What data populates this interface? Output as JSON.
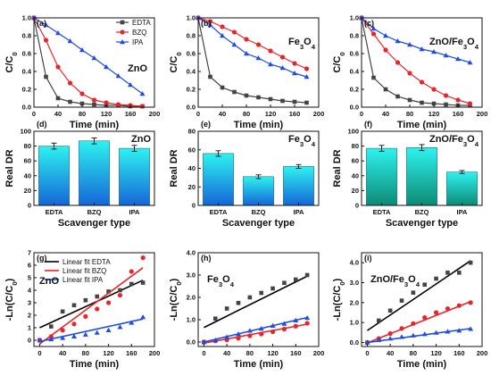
{
  "colors": {
    "edta": "#444444",
    "bzq": "#e8262a",
    "ipa": "#1f4de0",
    "bar_top": "#2ef2ef",
    "bar_blue": "#1466d8",
    "bar_green": "#0c8a74",
    "axis": "#111111"
  },
  "chart_data": [
    {
      "panel": "(a)",
      "type": "line",
      "title": "ZnO",
      "xlabel": "Time (min)",
      "ylabel": "C/C0",
      "xlim": [
        0,
        200
      ],
      "ylim": [
        0,
        1.0
      ],
      "xticks": [
        "0",
        "40",
        "80",
        "120",
        "160",
        "200"
      ],
      "yticks": [
        "0.0",
        "0.2",
        "0.4",
        "0.6",
        "0.8",
        "1.0"
      ],
      "x": [
        0,
        20,
        40,
        60,
        80,
        100,
        120,
        140,
        160,
        180
      ],
      "series": [
        {
          "name": "EDTA",
          "key": "edta",
          "marker": "square",
          "values": [
            1.0,
            0.34,
            0.1,
            0.06,
            0.04,
            0.03,
            0.02,
            0.02,
            0.01,
            0.01
          ]
        },
        {
          "name": "BZQ",
          "key": "bzq",
          "marker": "circle",
          "values": [
            1.0,
            0.75,
            0.45,
            0.27,
            0.15,
            0.08,
            0.05,
            0.03,
            0.02,
            0.01
          ]
        },
        {
          "name": "IPA",
          "key": "ipa",
          "marker": "triangle",
          "values": [
            1.0,
            0.92,
            0.83,
            0.74,
            0.64,
            0.55,
            0.45,
            0.35,
            0.25,
            0.15
          ]
        }
      ]
    },
    {
      "panel": "(b)",
      "type": "line",
      "title": "Fe3O4",
      "xlabel": "Time (min)",
      "ylabel": "C/C0",
      "xlim": [
        0,
        200
      ],
      "ylim": [
        0,
        1.0
      ],
      "xticks": [
        "0",
        "40",
        "80",
        "120",
        "160",
        "200"
      ],
      "yticks": [
        "0.0",
        "0.2",
        "0.4",
        "0.6",
        "0.8",
        "1.0"
      ],
      "x": [
        0,
        20,
        40,
        60,
        80,
        100,
        120,
        140,
        160,
        180
      ],
      "series": [
        {
          "name": "EDTA",
          "key": "edta",
          "marker": "square",
          "values": [
            1.0,
            0.34,
            0.22,
            0.17,
            0.13,
            0.11,
            0.09,
            0.07,
            0.06,
            0.05
          ]
        },
        {
          "name": "BZQ",
          "key": "bzq",
          "marker": "circle",
          "values": [
            1.0,
            0.96,
            0.9,
            0.84,
            0.76,
            0.7,
            0.63,
            0.56,
            0.49,
            0.43
          ]
        },
        {
          "name": "IPA",
          "key": "ipa",
          "marker": "triangle",
          "values": [
            1.0,
            0.92,
            0.8,
            0.7,
            0.6,
            0.55,
            0.48,
            0.44,
            0.38,
            0.34
          ]
        }
      ]
    },
    {
      "panel": "(c)",
      "type": "line",
      "title": "ZnO/Fe3O4",
      "xlabel": "Time (min)",
      "ylabel": "C/C0",
      "xlim": [
        0,
        200
      ],
      "ylim": [
        0,
        1.0
      ],
      "xticks": [
        "0",
        "40",
        "80",
        "120",
        "160",
        "200"
      ],
      "yticks": [
        "0.0",
        "0.2",
        "0.4",
        "0.6",
        "0.8",
        "1.0"
      ],
      "x": [
        0,
        20,
        40,
        60,
        80,
        100,
        120,
        140,
        160,
        180
      ],
      "series": [
        {
          "name": "EDTA",
          "key": "edta",
          "marker": "square",
          "values": [
            1.0,
            0.33,
            0.2,
            0.12,
            0.08,
            0.05,
            0.04,
            0.03,
            0.02,
            0.02
          ]
        },
        {
          "name": "BZQ",
          "key": "bzq",
          "marker": "circle",
          "values": [
            1.0,
            0.82,
            0.64,
            0.5,
            0.38,
            0.28,
            0.2,
            0.13,
            0.08,
            0.04
          ]
        },
        {
          "name": "IPA",
          "key": "ipa",
          "marker": "triangle",
          "values": [
            1.0,
            0.88,
            0.8,
            0.74,
            0.7,
            0.65,
            0.62,
            0.58,
            0.54,
            0.5
          ]
        }
      ]
    },
    {
      "panel": "(d)",
      "type": "bar",
      "title": "ZnO",
      "xlabel": "Scavenger type",
      "ylabel": "Real DR",
      "ylim": [
        0,
        100
      ],
      "yticks": [
        "0",
        "20",
        "40",
        "60",
        "80",
        "100"
      ],
      "categories": [
        "EDTA",
        "BZQ",
        "IPA"
      ],
      "values": [
        80,
        87,
        77
      ],
      "errors": [
        4,
        4,
        4
      ]
    },
    {
      "panel": "(e)",
      "type": "bar",
      "title": "Fe3O4",
      "xlabel": "Scavenger type",
      "ylabel": "Real DR",
      "ylim": [
        0,
        80
      ],
      "yticks": [
        "0",
        "20",
        "40",
        "60",
        "80"
      ],
      "categories": [
        "EDTA",
        "BZQ",
        "IPA"
      ],
      "values": [
        56,
        31,
        42
      ],
      "errors": [
        3,
        2,
        2
      ]
    },
    {
      "panel": "(f)",
      "type": "bar",
      "title": "ZnO/Fe3O4",
      "xlabel": "Scavenger type",
      "ylabel": "Real DR",
      "ylim": [
        0,
        100
      ],
      "yticks": [
        "0",
        "20",
        "40",
        "60",
        "80",
        "100"
      ],
      "categories": [
        "EDTA",
        "BZQ",
        "IPA"
      ],
      "values": [
        77,
        78,
        45
      ],
      "errors": [
        4,
        4,
        2
      ]
    },
    {
      "panel": "(g)",
      "type": "scatter",
      "title": "ZnO",
      "xlabel": "Time (min)",
      "ylabel": "-Ln(C/C0)",
      "xlim": [
        -10,
        200
      ],
      "ylim": [
        -0.5,
        7
      ],
      "xticks": [
        "0",
        "40",
        "80",
        "120",
        "160",
        "200"
      ],
      "yticks": [
        "0",
        "1",
        "2",
        "3",
        "4",
        "5",
        "6",
        "7"
      ],
      "legend": [
        "Linear fit EDTA",
        "Linear fit BZQ",
        "Linear fit IPA"
      ],
      "x": [
        0,
        20,
        40,
        60,
        80,
        100,
        120,
        140,
        160,
        180
      ],
      "series": [
        {
          "name": "EDTA",
          "key": "edta",
          "marker": "square",
          "values": [
            0.0,
            1.1,
            2.3,
            2.8,
            3.2,
            3.5,
            3.9,
            4.0,
            4.5,
            4.6
          ],
          "fit": [
            1.0,
            4.8
          ]
        },
        {
          "name": "BZQ",
          "key": "bzq",
          "marker": "circle",
          "values": [
            0.0,
            0.3,
            0.8,
            1.3,
            1.9,
            2.5,
            3.0,
            3.6,
            5.5,
            6.6
          ],
          "fit": [
            -0.3,
            5.8
          ]
        },
        {
          "name": "IPA",
          "key": "ipa",
          "marker": "triangle",
          "values": [
            0.0,
            0.08,
            0.18,
            0.3,
            0.45,
            0.6,
            0.8,
            1.05,
            1.4,
            1.85
          ],
          "fit": [
            -0.1,
            1.7
          ]
        }
      ]
    },
    {
      "panel": "(h)",
      "type": "scatter",
      "title": "Fe3O4",
      "xlabel": "Time (min)",
      "ylabel": "-Ln(C/C0)",
      "xlim": [
        -10,
        200
      ],
      "ylim": [
        -0.2,
        4
      ],
      "xticks": [
        "0",
        "40",
        "80",
        "120",
        "160",
        "200"
      ],
      "yticks": [
        "0.0",
        "1.0",
        "2.0",
        "3.0",
        "4.0"
      ],
      "x": [
        0,
        20,
        40,
        60,
        80,
        100,
        120,
        140,
        160,
        180
      ],
      "series": [
        {
          "name": "EDTA",
          "key": "edta",
          "marker": "square",
          "values": [
            0.0,
            1.05,
            1.5,
            1.75,
            2.0,
            2.2,
            2.4,
            2.65,
            2.8,
            3.0
          ],
          "fit": [
            0.65,
            2.95
          ]
        },
        {
          "name": "BZQ",
          "key": "bzq",
          "marker": "circle",
          "values": [
            0.0,
            0.05,
            0.1,
            0.17,
            0.28,
            0.36,
            0.46,
            0.58,
            0.71,
            0.84
          ],
          "fit": [
            -0.05,
            0.8
          ]
        },
        {
          "name": "IPA",
          "key": "ipa",
          "marker": "triangle",
          "values": [
            0.0,
            0.08,
            0.22,
            0.36,
            0.51,
            0.6,
            0.73,
            0.82,
            0.97,
            1.08
          ],
          "fit": [
            0.0,
            1.1
          ]
        }
      ]
    },
    {
      "panel": "(i)",
      "type": "scatter",
      "title": "ZnO/Fe3O4",
      "xlabel": "Time (min)",
      "ylabel": "-Ln(C/C0)",
      "xlim": [
        -10,
        200
      ],
      "ylim": [
        -0.2,
        4.5
      ],
      "xticks": [
        "0",
        "40",
        "80",
        "120",
        "160",
        "200"
      ],
      "yticks": [
        "0.0",
        "1.0",
        "2.0",
        "3.0",
        "4.0"
      ],
      "x": [
        0,
        20,
        40,
        60,
        80,
        100,
        120,
        140,
        160,
        180
      ],
      "series": [
        {
          "name": "EDTA",
          "key": "edta",
          "marker": "square",
          "values": [
            0.0,
            1.1,
            1.6,
            2.1,
            2.5,
            2.9,
            3.2,
            3.5,
            3.5,
            4.0
          ],
          "fit": [
            0.6,
            4.1
          ]
        },
        {
          "name": "BZQ",
          "key": "bzq",
          "marker": "circle",
          "values": [
            0.0,
            0.2,
            0.45,
            0.7,
            0.95,
            1.25,
            1.5,
            1.7,
            1.85,
            2.0
          ],
          "fit": [
            -0.02,
            2.05
          ]
        },
        {
          "name": "IPA",
          "key": "ipa",
          "marker": "triangle",
          "values": [
            0.0,
            0.12,
            0.2,
            0.28,
            0.35,
            0.42,
            0.49,
            0.55,
            0.6,
            0.68
          ],
          "fit": [
            0.0,
            0.7
          ]
        }
      ]
    }
  ]
}
